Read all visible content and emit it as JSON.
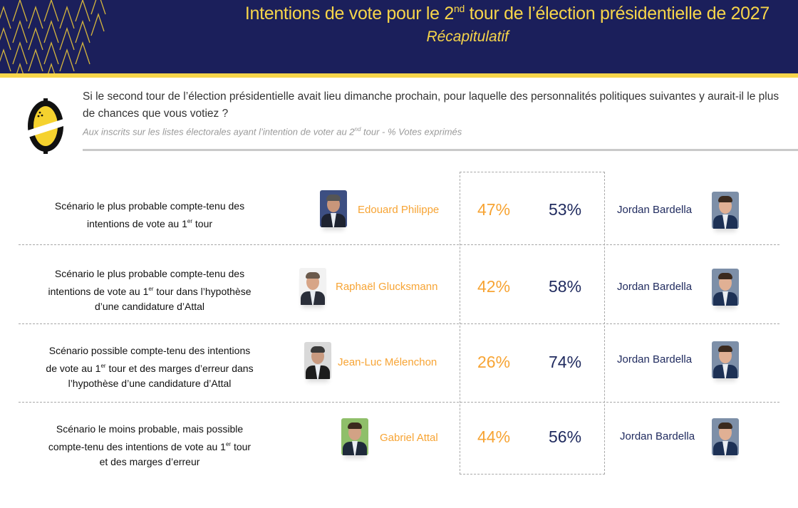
{
  "header": {
    "title_part1": "Intentions de vote pour le 2",
    "title_sup": "nd",
    "title_part2": " tour de l’élection présidentielle de 2027",
    "subtitle": "Récapitulatif",
    "colors": {
      "banner": "#1b1f5b",
      "accent": "#f7d54a"
    }
  },
  "question": {
    "text": "Si le second tour de l’élection présidentielle avait lieu dimanche prochain, pour laquelle des personnalités politiques suivantes y aurait-il le plus de chances que vous votiez ?",
    "note_part1": "Aux inscrits sur les listes électorales ayant l’intention de voter au 2",
    "note_sup": "nd",
    "note_part2": " tour  - % Votes exprimés",
    "logo_icon": "pollster-logo-icon"
  },
  "colors": {
    "left_candidate": "#f7a434",
    "right_candidate": "#1f2a5e"
  },
  "scenarios": [
    {
      "lines": [
        {
          "pre": "Scénario le plus probable compte-tenu des",
          "sup": "",
          "post": ""
        },
        {
          "pre": "intentions de vote au 1",
          "sup": "er",
          "post": " tour"
        }
      ],
      "left_name": "Edouard Philippe",
      "left_pct": "47%",
      "right_pct": "53%",
      "right_name": "Jordan Bardella"
    },
    {
      "lines": [
        {
          "pre": "Scénario le plus probable compte-tenu des",
          "sup": "",
          "post": ""
        },
        {
          "pre": "intentions de vote au 1",
          "sup": "er",
          "post": " tour dans l’hypothèse"
        },
        {
          "pre": "d’une candidature d’Attal",
          "sup": "",
          "post": ""
        }
      ],
      "left_name": "Raphaël Glucksmann",
      "left_pct": "42%",
      "right_pct": "58%",
      "right_name": "Jordan Bardella"
    },
    {
      "lines": [
        {
          "pre": "Scénario possible compte-tenu des intentions",
          "sup": "",
          "post": ""
        },
        {
          "pre": "de vote au 1",
          "sup": "er",
          "post": " tour et des marges d’erreur dans"
        },
        {
          "pre": "l’hypothèse d’une candidature d’Attal",
          "sup": "",
          "post": ""
        }
      ],
      "left_name": "Jean-Luc Mélenchon",
      "left_pct": "26%",
      "right_pct": "74%",
      "right_name": "Jordan Bardella"
    },
    {
      "lines": [
        {
          "pre": "Scénario le moins probable, mais possible",
          "sup": "",
          "post": ""
        },
        {
          "pre": "compte-tenu des intentions de vote au 1",
          "sup": "er",
          "post": " tour"
        },
        {
          "pre": "et des marges d’erreur",
          "sup": "",
          "post": ""
        }
      ],
      "left_name": "Gabriel Attal",
      "left_pct": "44%",
      "right_pct": "56%",
      "right_name": "Jordan Bardella"
    }
  ]
}
